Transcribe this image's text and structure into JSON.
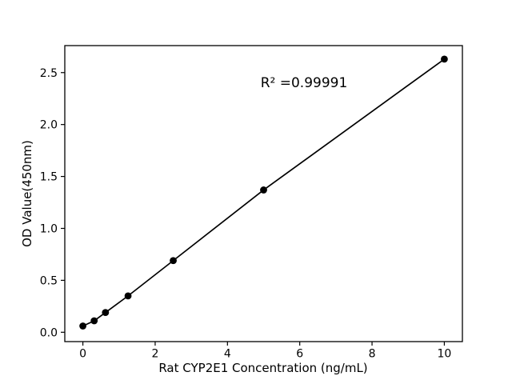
{
  "figure": {
    "background": "#ffffff"
  },
  "chart_data": {
    "type": "scatter",
    "title": "",
    "subtitle": "",
    "x_axis": {
      "label": "Rat CYP2E1 Concentration (ng/mL)",
      "range": [
        -0.5,
        10.5
      ],
      "ticks": [
        {
          "value": 0,
          "label": "0"
        },
        {
          "value": 2,
          "label": "2"
        },
        {
          "value": 4,
          "label": "4"
        },
        {
          "value": 6,
          "label": "6"
        },
        {
          "value": 8,
          "label": "8"
        },
        {
          "value": 10,
          "label": "10"
        }
      ]
    },
    "y_axis": {
      "label": "OD Value(450nm)",
      "range": [
        -0.09,
        2.76
      ],
      "ticks": [
        {
          "value": 0.0,
          "label": "0.0"
        },
        {
          "value": 0.5,
          "label": "0.5"
        },
        {
          "value": 1.0,
          "label": "1.0"
        },
        {
          "value": 1.5,
          "label": "1.5"
        },
        {
          "value": 2.0,
          "label": "2.0"
        },
        {
          "value": 2.5,
          "label": "2.5"
        }
      ]
    },
    "points": [
      {
        "x": 0,
        "y": 0.06
      },
      {
        "x": 0.313,
        "y": 0.11
      },
      {
        "x": 0.625,
        "y": 0.19
      },
      {
        "x": 1.25,
        "y": 0.35
      },
      {
        "x": 2.5,
        "y": 0.69
      },
      {
        "x": 5,
        "y": 1.37
      },
      {
        "x": 10,
        "y": 2.63
      }
    ],
    "line": {
      "style": "solid",
      "through_points": true
    },
    "annotation": {
      "text": "R² =0.99991",
      "r_squared": 0.99991
    },
    "colors": {
      "marker": "#000000",
      "line": "#000000",
      "axis": "#000000",
      "text": "#000000",
      "background": "#ffffff"
    },
    "grid": false,
    "legend": "none",
    "marker_shape": "circle"
  }
}
